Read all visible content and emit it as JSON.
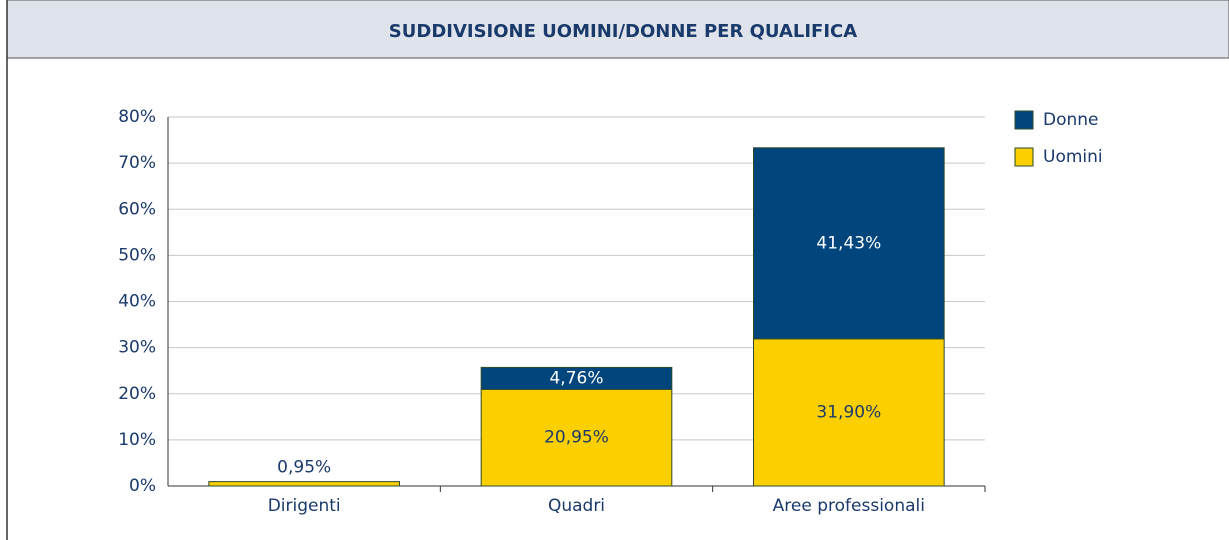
{
  "chart_data": {
    "type": "stacked_bar",
    "title": "SUDDIVISIONE UOMINI/DONNE PER QUALIFICA",
    "categories": [
      "Dirigenti",
      "Quadri",
      "Aree professionali"
    ],
    "series": [
      {
        "name": "Uomini",
        "color": "#fcd000",
        "values": [
          0.95,
          20.95,
          31.9
        ],
        "value_labels": [
          "0,95%",
          "20,95%",
          "31,90%"
        ]
      },
      {
        "name": "Donne",
        "color": "#00457c",
        "values": [
          null,
          4.76,
          41.43
        ],
        "value_labels": [
          null,
          "4,76%",
          "41,43%"
        ]
      }
    ],
    "ylim": [
      0,
      80
    ],
    "yticks": [
      {
        "value": 0,
        "label": "0%"
      },
      {
        "value": 10,
        "label": "10%"
      },
      {
        "value": 20,
        "label": "20%"
      },
      {
        "value": 30,
        "label": "30%"
      },
      {
        "value": 40,
        "label": "40%"
      },
      {
        "value": 50,
        "label": "50%"
      },
      {
        "value": 60,
        "label": "60%"
      },
      {
        "value": 70,
        "label": "70%"
      },
      {
        "value": 80,
        "label": "80%"
      }
    ],
    "grid": true,
    "legend": "right"
  }
}
